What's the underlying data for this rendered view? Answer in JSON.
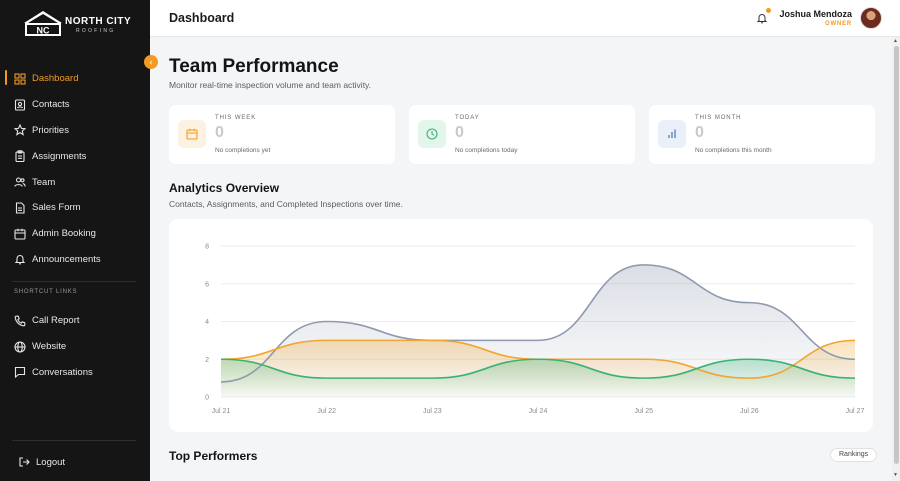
{
  "brand": {
    "name": "NORTH CITY",
    "sub": "ROOFING"
  },
  "colors": {
    "accent": "#f29a22",
    "sidebar_bg": "#151515",
    "series_contacts": "#8e9aae",
    "series_assignments": "#f2a531",
    "series_completed": "#3bb273"
  },
  "sidebar": {
    "items": [
      {
        "label": "Dashboard",
        "icon": "grid-icon",
        "active": true
      },
      {
        "label": "Contacts",
        "icon": "contact-card-icon"
      },
      {
        "label": "Priorities",
        "icon": "star-icon"
      },
      {
        "label": "Assignments",
        "icon": "clipboard-icon"
      },
      {
        "label": "Team",
        "icon": "users-icon"
      },
      {
        "label": "Sales Form",
        "icon": "document-icon"
      },
      {
        "label": "Admin Booking",
        "icon": "calendar-icon"
      },
      {
        "label": "Announcements",
        "icon": "bell-icon"
      }
    ],
    "shortcut_label": "SHORTCUT LINKS",
    "shortcuts": [
      {
        "label": "Call Report",
        "icon": "phone-icon"
      },
      {
        "label": "Website",
        "icon": "globe-icon"
      },
      {
        "label": "Conversations",
        "icon": "chat-icon"
      }
    ],
    "logout_label": "Logout"
  },
  "header": {
    "title": "Dashboard",
    "user_name": "Joshua Mendoza",
    "user_role": "OWNER"
  },
  "main": {
    "title": "Team Performance",
    "subtitle": "Monitor real-time inspection volume and team activity.",
    "stats": [
      {
        "label": "THIS WEEK",
        "value": "0",
        "note": "No completions yet",
        "icon": "calendar-icon"
      },
      {
        "label": "TODAY",
        "value": "0",
        "note": "No completions today",
        "icon": "clock-icon"
      },
      {
        "label": "THIS MONTH",
        "value": "0",
        "note": "No completions this month",
        "icon": "bar-chart-icon"
      }
    ],
    "analytics_title": "Analytics Overview",
    "analytics_subtitle": "Contacts, Assignments, and Completed Inspections over time.",
    "performers_title": "Top Performers",
    "rankings_label": "Rankings"
  },
  "chart_data": {
    "type": "area",
    "x": [
      "Jul 21",
      "Jul 22",
      "Jul 23",
      "Jul 24",
      "Jul 25",
      "Jul 26",
      "Jul 27"
    ],
    "yticks": [
      0,
      2,
      4,
      6,
      8
    ],
    "ylim": [
      0,
      8
    ],
    "series": [
      {
        "values": [
          0.8,
          4,
          3,
          3,
          7,
          5,
          2
        ],
        "color": "#8e9aae"
      },
      {
        "values": [
          2,
          3,
          3,
          2,
          2,
          1,
          3
        ],
        "color": "#f2a531"
      },
      {
        "values": [
          2,
          1,
          1,
          2,
          1,
          2,
          1
        ],
        "color": "#3bb273"
      }
    ],
    "grid": true,
    "legend": "none"
  }
}
